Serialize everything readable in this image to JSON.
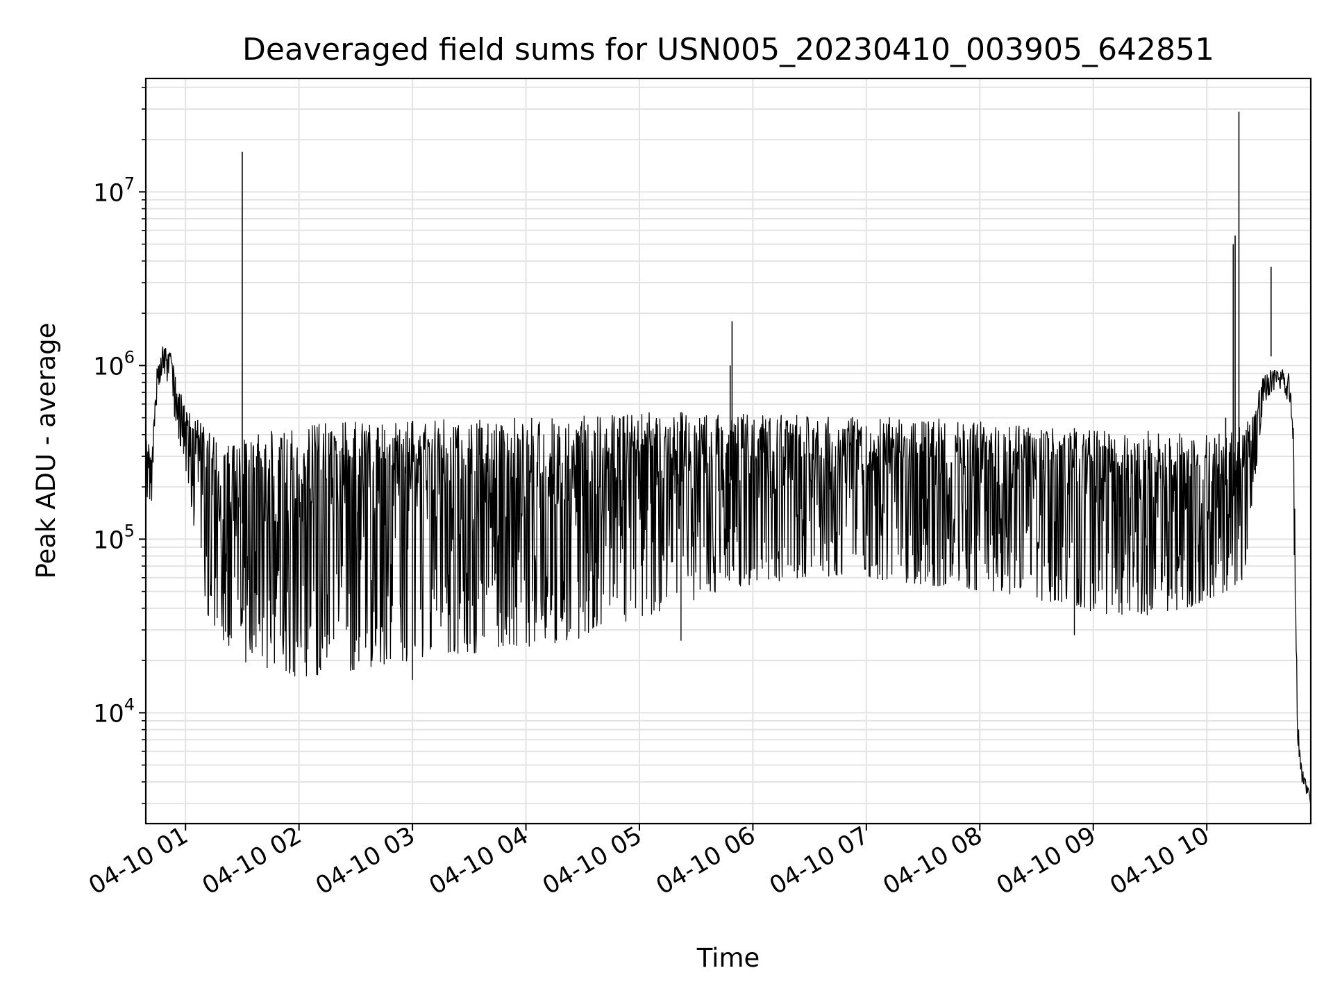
{
  "chart_data": {
    "type": "line",
    "title": "Deaveraged field sums for USN005_20230410_003905_642851",
    "xlabel": "Time",
    "ylabel": "Peak ADU - average",
    "xlim": [
      "2023-04-10 00:39",
      "2023-04-10 10:55"
    ],
    "ylim": [
      2300,
      45000000
    ],
    "yscale": "log",
    "grid": true,
    "line_color": "#000000",
    "x_tick_labels": [
      "04-10 01",
      "04-10 02",
      "04-10 03",
      "04-10 04",
      "04-10 05",
      "04-10 06",
      "04-10 07",
      "04-10 08",
      "04-10 09",
      "04-10 10"
    ],
    "x_tick_times": [
      "2023-04-10 01:00",
      "2023-04-10 02:00",
      "2023-04-10 03:00",
      "2023-04-10 04:00",
      "2023-04-10 05:00",
      "2023-04-10 06:00",
      "2023-04-10 07:00",
      "2023-04-10 08:00",
      "2023-04-10 09:00",
      "2023-04-10 10:00"
    ],
    "y_ticks": [
      {
        "value": 10000,
        "base": "10",
        "exp": "4"
      },
      {
        "value": 100000,
        "base": "10",
        "exp": "5"
      },
      {
        "value": 1000000,
        "base": "10",
        "exp": "6"
      },
      {
        "value": 10000000,
        "base": "10",
        "exp": "7"
      }
    ],
    "series": [
      {
        "envelope": {
          "x": [
            "2023-04-10 00:39",
            "2023-04-10 00:42",
            "2023-04-10 00:45",
            "2023-04-10 00:48",
            "2023-04-10 00:52",
            "2023-04-10 00:55",
            "2023-04-10 01:00",
            "2023-04-10 01:05",
            "2023-04-10 01:10",
            "2023-04-10 01:20",
            "2023-04-10 01:30",
            "2023-04-10 01:45",
            "2023-04-10 02:00",
            "2023-04-10 02:20",
            "2023-04-10 02:45",
            "2023-04-10 03:00",
            "2023-04-10 03:30",
            "2023-04-10 04:00",
            "2023-04-10 04:30",
            "2023-04-10 05:00",
            "2023-04-10 05:30",
            "2023-04-10 06:00",
            "2023-04-10 06:30",
            "2023-04-10 07:00",
            "2023-04-10 07:30",
            "2023-04-10 08:00",
            "2023-04-10 08:30",
            "2023-04-10 09:00",
            "2023-04-10 09:30",
            "2023-04-10 09:50",
            "2023-04-10 10:00",
            "2023-04-10 10:10",
            "2023-04-10 10:20",
            "2023-04-10 10:25",
            "2023-04-10 10:30",
            "2023-04-10 10:35",
            "2023-04-10 10:40",
            "2023-04-10 10:44",
            "2023-04-10 10:46",
            "2023-04-10 10:48",
            "2023-04-10 10:50",
            "2023-04-10 10:55"
          ],
          "high": [
            450000,
            300000,
            1000000,
            1300000,
            1200000,
            900000,
            550000,
            500000,
            450000,
            350000,
            380000,
            420000,
            450000,
            480000,
            480000,
            480000,
            500000,
            500000,
            520000,
            540000,
            540000,
            520000,
            520000,
            510000,
            500000,
            480000,
            450000,
            430000,
            420000,
            400000,
            400000,
            420000,
            450000,
            600000,
            900000,
            950000,
            950000,
            900000,
            400000,
            10000,
            5000,
            3300
          ],
          "low": [
            160000,
            160000,
            700000,
            900000,
            750000,
            400000,
            250000,
            100000,
            40000,
            25000,
            20000,
            17000,
            16000,
            17000,
            19000,
            20000,
            22000,
            23000,
            27000,
            35000,
            45000,
            55000,
            60000,
            60000,
            55000,
            50000,
            45000,
            38000,
            35000,
            40000,
            45000,
            50000,
            60000,
            200000,
            600000,
            700000,
            700000,
            600000,
            100000,
            7000,
            4000,
            3000
          ]
        },
        "spikes": [
          {
            "x": "2023-04-10 01:30",
            "value": 17000000
          },
          {
            "x": "2023-04-10 05:48",
            "value": 1000000
          },
          {
            "x": "2023-04-10 05:49",
            "value": 1800000
          },
          {
            "x": "2023-04-10 10:10",
            "value": 500000
          },
          {
            "x": "2023-04-10 10:14",
            "value": 5000000
          },
          {
            "x": "2023-04-10 10:15",
            "value": 5600000
          },
          {
            "x": "2023-04-10 10:17",
            "value": 29000000
          },
          {
            "x": "2023-04-10 10:34",
            "value": 3700000
          }
        ],
        "dips": [
          {
            "x": "2023-04-10 03:00",
            "value": 15500
          },
          {
            "x": "2023-04-10 05:22",
            "value": 26000
          },
          {
            "x": "2023-04-10 08:50",
            "value": 28000
          }
        ]
      }
    ]
  }
}
